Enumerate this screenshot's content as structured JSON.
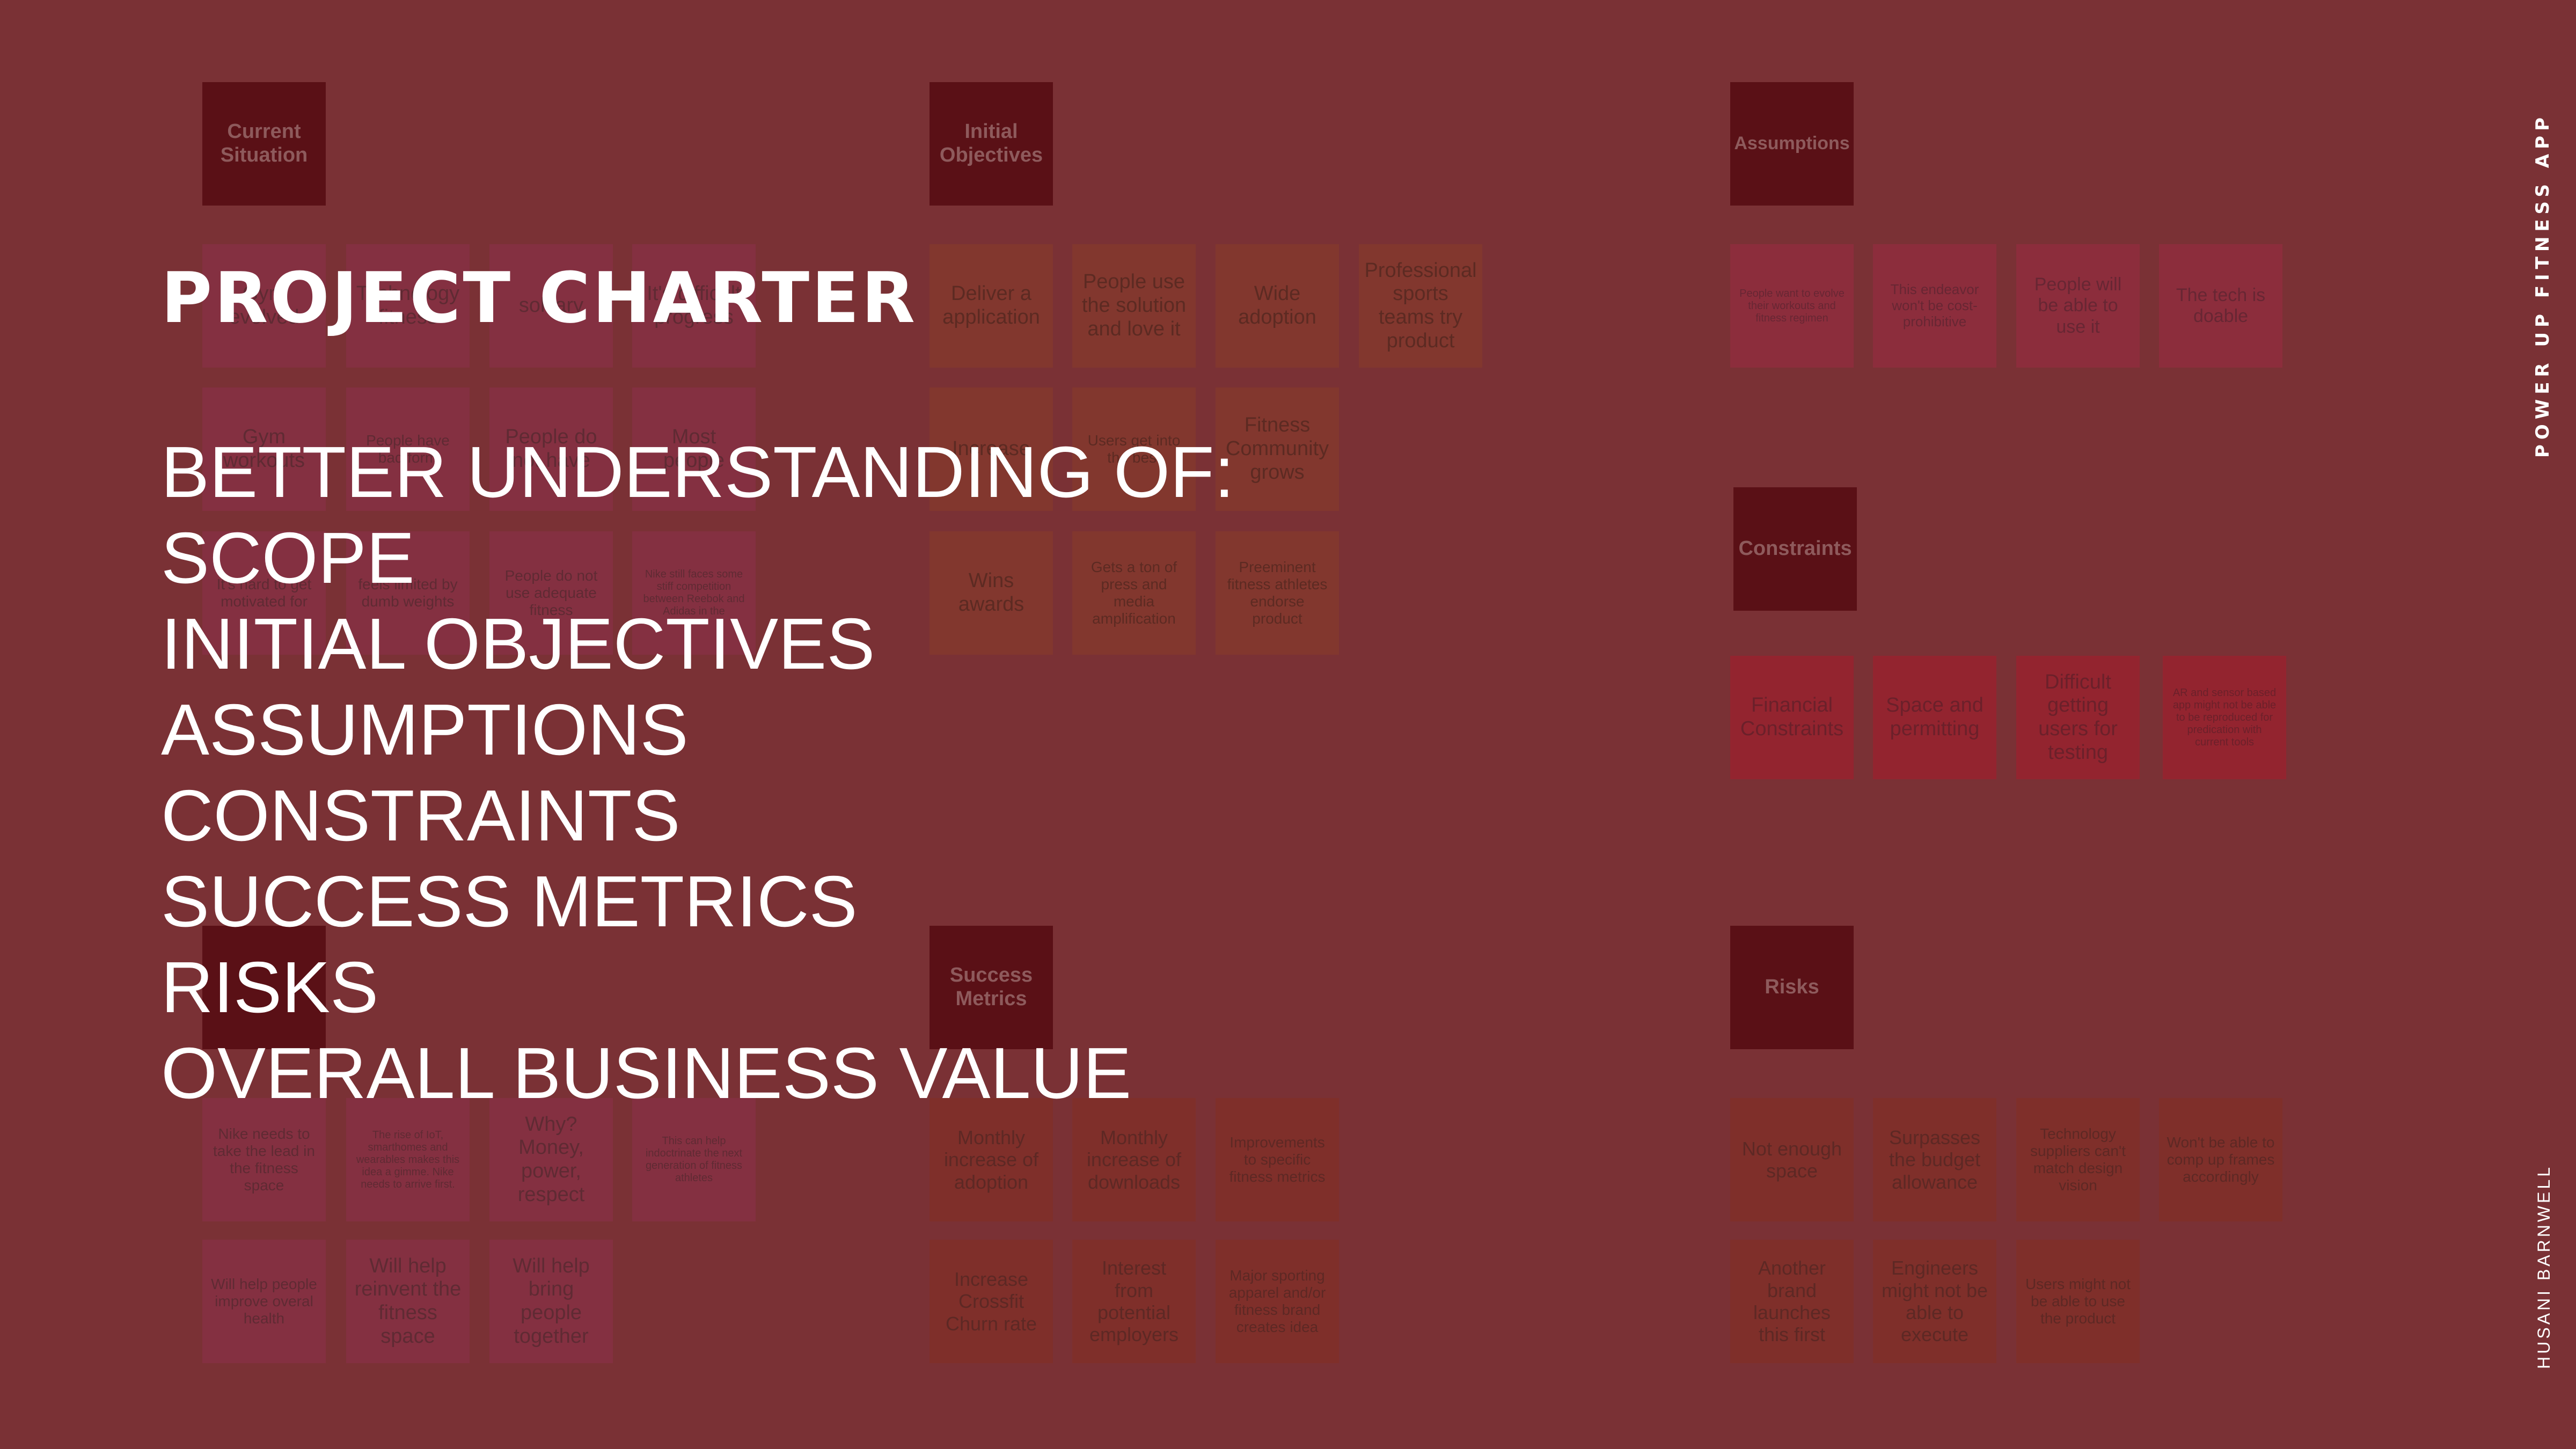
{
  "title": "PROJECT CHARTER",
  "items": [
    "BETTER UNDERSTANDING OF:",
    "SCOPE",
    "INITIAL OBJECTIVES",
    "ASSUMPTIONS",
    "CONSTRAINTS",
    "SUCCESS METRICS",
    "RISKS",
    "OVERALL BUSINESS VALUE"
  ],
  "side_top": "POWER UP FITNESS APP",
  "side_bottom": "HUSANI BARNWELL",
  "board": {
    "headers": {
      "current": "Current Situation",
      "objectives": "Initial Objectives",
      "assumptions": "Assumptions",
      "constraints": "Constraints",
      "success": "Success Metrics",
      "risks": "Risks"
    },
    "current": [
      "Gym evolved",
      "Technology fitness",
      "solitary",
      "It's difficult progress",
      "Gym workouts",
      "People have bad form",
      "People do not have",
      "Most people",
      "It's hard to get motivated for",
      "feels limited by dumb weights",
      "People do not use adequate fitness",
      "Nike still faces some stiff competition between Reebok and Adidas in the"
    ],
    "value": [
      "Nike needs to take the lead in the fitness space",
      "The rise of IoT, smarthomes and wearables makes this idea a gimme. Nike needs to arrive first.",
      "Why? Money, power, respect",
      "This can help indoctrinate the next generation of fitness athletes",
      "Will help people improve overal health",
      "Will help reinvent the fitness space",
      "Will help bring people together"
    ],
    "objectives": [
      "Deliver a application",
      "People use the solution and love it",
      "Wide adoption",
      "Professional sports teams try product",
      "Increase",
      "Users get into the best",
      "Fitness Community grows",
      "Wins awards",
      "Gets a ton of press and media amplification",
      "Preeminent fitness athletes endorse product"
    ],
    "assumptions": [
      "People want to evolve their workouts and fitness regimen",
      "This endeavor won't be cost-prohibitive",
      "People will be able to use it",
      "The tech is doable"
    ],
    "constraints": [
      "Financial Constraints",
      "Space and permitting",
      "Difficult getting users for testing",
      "AR and sensor based app might not be able to be reproduced for predication with current tools"
    ],
    "success": [
      "Monthly increase of adoption",
      "Monthly increase of downloads",
      "Improvements to specific fitness metrics",
      "Increase Crossfit Churn rate",
      "Interest from potential employers",
      "Major sporting apparel and/or fitness brand creates idea"
    ],
    "risks": [
      "Not enough space",
      "Surpasses the budget allowance",
      "Technology suppliers can't match design vision",
      "Won't be able to comp up frames accordingly",
      "Another brand launches this first",
      "Engineers might not be able to execute",
      "Users might not be able to use the product"
    ]
  }
}
